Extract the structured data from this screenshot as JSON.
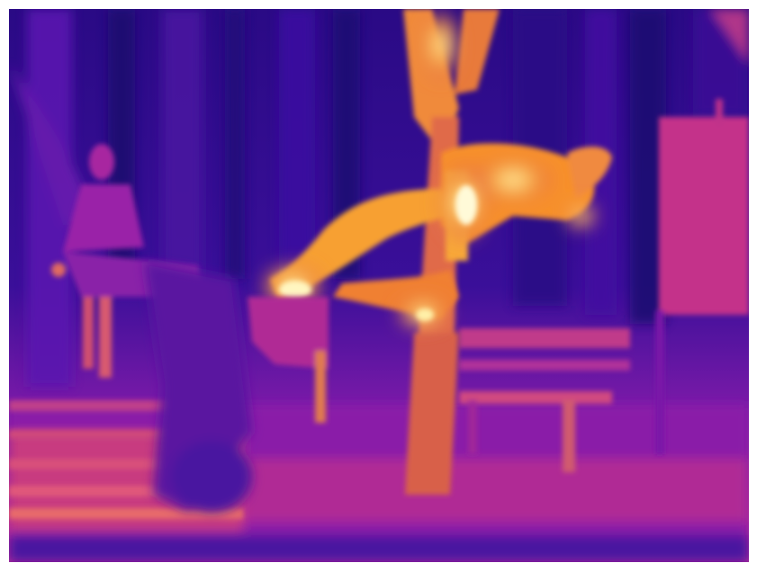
{
  "image": {
    "kind": "thermal-photograph",
    "palette": "inferno",
    "colors": {
      "cold": "#1a0a6e",
      "cool": "#4a12a8",
      "mid": "#9c1fb0",
      "warm": "#e0408a",
      "hot": "#f7902a",
      "hottest": "#fff6b0",
      "border": "#ffffff"
    },
    "subjects": [
      "person-sitting",
      "person-doing-trick",
      "bench",
      "tree",
      "signboard",
      "steps"
    ]
  }
}
